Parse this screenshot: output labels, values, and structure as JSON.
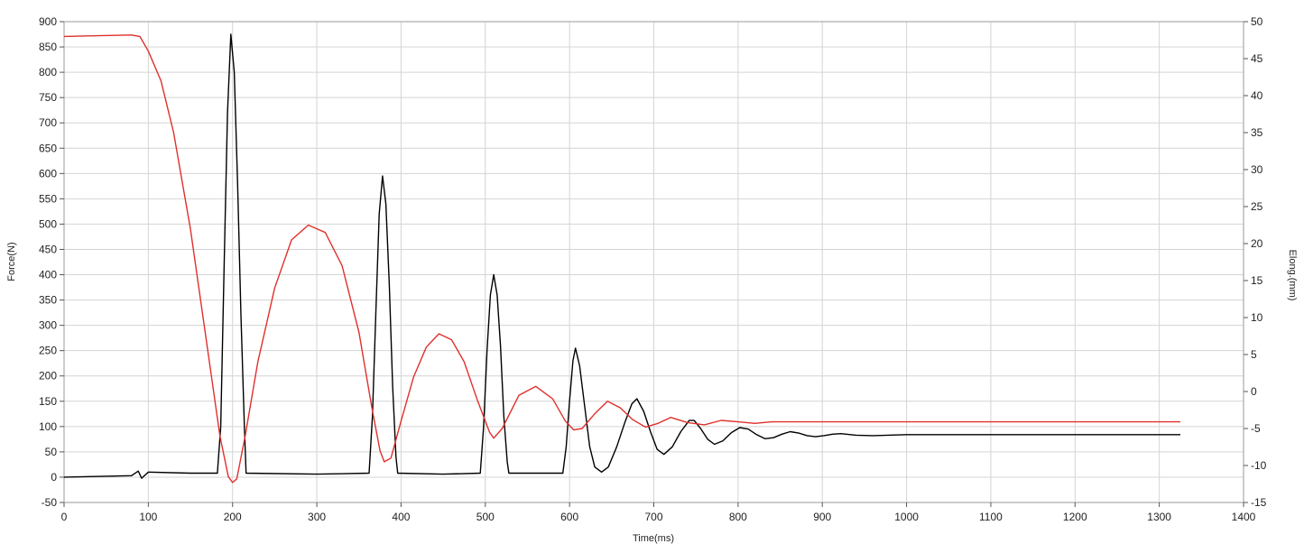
{
  "chart_data": {
    "type": "line",
    "title": "",
    "xlabel": "Time(ms)",
    "ylabel": "Force(N)",
    "y2label": "Elong.(mm)",
    "xlim": [
      0,
      1400
    ],
    "ylim": [
      -50,
      900
    ],
    "y2lim": [
      -15,
      50
    ],
    "xticks": [
      0,
      100,
      200,
      300,
      400,
      500,
      600,
      700,
      800,
      900,
      1000,
      1100,
      1200,
      1300,
      1400
    ],
    "yticks": [
      -50,
      0,
      50,
      100,
      150,
      200,
      250,
      300,
      350,
      400,
      450,
      500,
      550,
      600,
      650,
      700,
      750,
      800,
      850,
      900
    ],
    "y2ticks": [
      -15,
      -10,
      -5,
      0,
      5,
      10,
      15,
      20,
      25,
      30,
      35,
      40,
      45,
      50
    ],
    "grid": true,
    "legend": "none",
    "series": [
      {
        "axis": "left",
        "color": "#000000",
        "points": [
          [
            0,
            0
          ],
          [
            80,
            3
          ],
          [
            88,
            12
          ],
          [
            92,
            -2
          ],
          [
            100,
            10
          ],
          [
            150,
            8
          ],
          [
            182,
            8
          ],
          [
            186,
            100
          ],
          [
            190,
            420
          ],
          [
            194,
            720
          ],
          [
            198,
            875
          ],
          [
            202,
            800
          ],
          [
            206,
            580
          ],
          [
            210,
            320
          ],
          [
            214,
            100
          ],
          [
            216,
            8
          ],
          [
            300,
            6
          ],
          [
            362,
            8
          ],
          [
            366,
            120
          ],
          [
            370,
            320
          ],
          [
            374,
            520
          ],
          [
            378,
            595
          ],
          [
            382,
            540
          ],
          [
            386,
            380
          ],
          [
            390,
            180
          ],
          [
            394,
            40
          ],
          [
            396,
            8
          ],
          [
            450,
            6
          ],
          [
            494,
            8
          ],
          [
            498,
            100
          ],
          [
            502,
            250
          ],
          [
            506,
            360
          ],
          [
            510,
            400
          ],
          [
            514,
            360
          ],
          [
            518,
            260
          ],
          [
            522,
            120
          ],
          [
            526,
            30
          ],
          [
            528,
            8
          ],
          [
            580,
            8
          ],
          [
            592,
            8
          ],
          [
            596,
            60
          ],
          [
            600,
            150
          ],
          [
            604,
            230
          ],
          [
            607,
            255
          ],
          [
            612,
            220
          ],
          [
            618,
            140
          ],
          [
            624,
            60
          ],
          [
            630,
            20
          ],
          [
            638,
            10
          ],
          [
            646,
            20
          ],
          [
            656,
            60
          ],
          [
            666,
            110
          ],
          [
            674,
            145
          ],
          [
            680,
            155
          ],
          [
            688,
            130
          ],
          [
            696,
            90
          ],
          [
            704,
            55
          ],
          [
            712,
            45
          ],
          [
            722,
            60
          ],
          [
            732,
            90
          ],
          [
            742,
            112
          ],
          [
            748,
            112
          ],
          [
            756,
            95
          ],
          [
            764,
            75
          ],
          [
            772,
            65
          ],
          [
            782,
            72
          ],
          [
            792,
            88
          ],
          [
            802,
            98
          ],
          [
            812,
            95
          ],
          [
            822,
            84
          ],
          [
            832,
            76
          ],
          [
            842,
            78
          ],
          [
            852,
            85
          ],
          [
            862,
            90
          ],
          [
            872,
            87
          ],
          [
            882,
            82
          ],
          [
            892,
            80
          ],
          [
            902,
            82
          ],
          [
            912,
            85
          ],
          [
            922,
            86
          ],
          [
            940,
            83
          ],
          [
            960,
            82
          ],
          [
            1000,
            84
          ],
          [
            1100,
            84
          ],
          [
            1200,
            84
          ],
          [
            1325,
            84
          ]
        ]
      },
      {
        "axis": "right",
        "color": "#e0302c",
        "points": [
          [
            0,
            48
          ],
          [
            40,
            48.1
          ],
          [
            80,
            48.2
          ],
          [
            90,
            48.0
          ],
          [
            100,
            46
          ],
          [
            115,
            42
          ],
          [
            130,
            35
          ],
          [
            150,
            22
          ],
          [
            170,
            6
          ],
          [
            185,
            -6
          ],
          [
            195,
            -11.5
          ],
          [
            200,
            -12.3
          ],
          [
            205,
            -11.8
          ],
          [
            215,
            -6
          ],
          [
            230,
            4
          ],
          [
            250,
            14
          ],
          [
            270,
            20.5
          ],
          [
            290,
            22.5
          ],
          [
            310,
            21.5
          ],
          [
            330,
            17
          ],
          [
            350,
            8
          ],
          [
            365,
            -2
          ],
          [
            375,
            -8
          ],
          [
            380,
            -9.5
          ],
          [
            388,
            -9
          ],
          [
            400,
            -4
          ],
          [
            415,
            2
          ],
          [
            430,
            6
          ],
          [
            445,
            7.8
          ],
          [
            460,
            7
          ],
          [
            475,
            4
          ],
          [
            490,
            -1
          ],
          [
            505,
            -5.5
          ],
          [
            510,
            -6.3
          ],
          [
            520,
            -5
          ],
          [
            540,
            -0.5
          ],
          [
            560,
            0.7
          ],
          [
            580,
            -1
          ],
          [
            595,
            -4
          ],
          [
            605,
            -5.2
          ],
          [
            615,
            -5
          ],
          [
            630,
            -3
          ],
          [
            645,
            -1.3
          ],
          [
            660,
            -2.2
          ],
          [
            675,
            -3.8
          ],
          [
            690,
            -4.8
          ],
          [
            705,
            -4.3
          ],
          [
            720,
            -3.5
          ],
          [
            740,
            -4.2
          ],
          [
            760,
            -4.5
          ],
          [
            780,
            -3.9
          ],
          [
            800,
            -4.1
          ],
          [
            820,
            -4.3
          ],
          [
            840,
            -4.1
          ],
          [
            900,
            -4.1
          ],
          [
            1000,
            -4.1
          ],
          [
            1100,
            -4.1
          ],
          [
            1200,
            -4.1
          ],
          [
            1325,
            -4.1
          ]
        ]
      }
    ]
  }
}
